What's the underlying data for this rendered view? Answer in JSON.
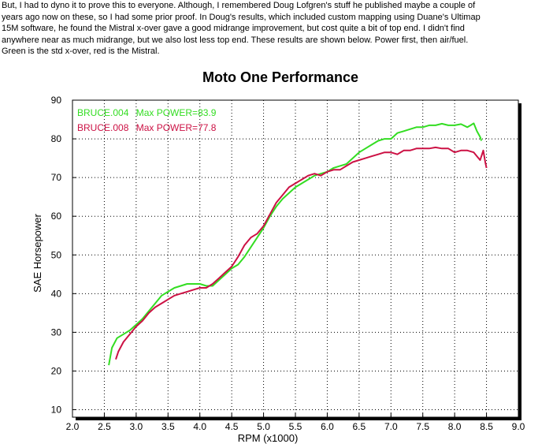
{
  "intro": {
    "lines": [
      "But, I had to dyno it to prove this to everyone. Although, I remembered Doug Lofgren's stuff he published maybe a couple of",
      "years ago now on these, so I had some prior proof. In Doug's results, which included custom mapping using Duane's Ultimap",
      "15M software, he found the Mistral x-over gave a good midrange improvement, but cost quite a bit of top end. I didn't find",
      "anywhere near as much midrange, but we also lost less top end. These results are shown below. Power first, then air/fuel.",
      "Green is the std x-over, red is the Mistral."
    ]
  },
  "colors": {
    "green": "#33dd22",
    "red": "#cc1144"
  },
  "chart_data": {
    "type": "line",
    "title": "Moto One Performance",
    "xlabel": "RPM (x1000)",
    "ylabel": "SAE Horsepower",
    "xlim": [
      2.0,
      9.0
    ],
    "ylim": [
      10,
      90
    ],
    "xticks": [
      "2.0",
      "2.5",
      "3.0",
      "3.5",
      "4.0",
      "4.5",
      "5.0",
      "5.5",
      "6.0",
      "6.5",
      "7.0",
      "7.5",
      "8.0",
      "8.5",
      "9.0"
    ],
    "yticks": [
      "10",
      "20",
      "30",
      "40",
      "50",
      "60",
      "70",
      "80",
      "90"
    ],
    "grid": true,
    "legend_position": "top-left",
    "series": [
      {
        "name": "BRUCE.004",
        "legend": "Max POWER=83.9",
        "color": "#33dd22",
        "x": [
          2.57,
          2.62,
          2.7,
          2.8,
          2.9,
          3.0,
          3.1,
          3.2,
          3.3,
          3.4,
          3.5,
          3.6,
          3.7,
          3.8,
          3.9,
          4.0,
          4.1,
          4.2,
          4.3,
          4.4,
          4.5,
          4.6,
          4.7,
          4.8,
          4.9,
          5.0,
          5.1,
          5.2,
          5.3,
          5.4,
          5.5,
          5.6,
          5.7,
          5.8,
          5.9,
          6.0,
          6.1,
          6.2,
          6.3,
          6.4,
          6.5,
          6.6,
          6.7,
          6.8,
          6.9,
          7.0,
          7.1,
          7.2,
          7.3,
          7.4,
          7.5,
          7.6,
          7.7,
          7.8,
          7.9,
          8.0,
          8.1,
          8.2,
          8.25,
          8.3,
          8.35,
          8.4,
          8.42
        ],
        "y": [
          21.5,
          26.0,
          28.5,
          29.5,
          30.5,
          32.0,
          33.5,
          35.5,
          37.5,
          39.5,
          40.5,
          41.5,
          42.0,
          42.5,
          42.5,
          42.5,
          42.0,
          42.0,
          43.5,
          45.0,
          46.5,
          47.5,
          49.5,
          52.0,
          54.5,
          57.0,
          60.0,
          62.5,
          64.5,
          66.0,
          67.5,
          68.5,
          69.5,
          70.5,
          71.0,
          71.5,
          72.5,
          73.0,
          73.5,
          75.0,
          76.5,
          77.5,
          78.5,
          79.5,
          80.0,
          80.0,
          81.5,
          82.0,
          82.5,
          83.0,
          83.0,
          83.5,
          83.5,
          83.9,
          83.5,
          83.5,
          83.8,
          83.0,
          83.5,
          84.0,
          82.0,
          80.5,
          79.5
        ]
      },
      {
        "name": "BRUCE.008",
        "legend": "Max POWER=77.8",
        "color": "#cc1144",
        "x": [
          2.68,
          2.72,
          2.8,
          2.9,
          3.0,
          3.1,
          3.2,
          3.3,
          3.4,
          3.5,
          3.6,
          3.7,
          3.8,
          3.9,
          4.0,
          4.1,
          4.2,
          4.3,
          4.4,
          4.5,
          4.6,
          4.7,
          4.8,
          4.9,
          5.0,
          5.1,
          5.2,
          5.3,
          5.4,
          5.5,
          5.6,
          5.7,
          5.8,
          5.9,
          6.0,
          6.1,
          6.2,
          6.3,
          6.4,
          6.5,
          6.6,
          6.7,
          6.8,
          6.9,
          7.0,
          7.1,
          7.2,
          7.3,
          7.4,
          7.5,
          7.6,
          7.7,
          7.8,
          7.9,
          8.0,
          8.1,
          8.2,
          8.3,
          8.35,
          8.4,
          8.45,
          8.48,
          8.5
        ],
        "y": [
          23.0,
          25.0,
          27.5,
          29.5,
          31.5,
          33.0,
          35.0,
          36.5,
          37.5,
          38.5,
          39.5,
          40.0,
          40.5,
          41.0,
          41.5,
          41.5,
          42.5,
          44.0,
          45.5,
          47.0,
          49.5,
          52.5,
          54.5,
          55.5,
          57.5,
          60.5,
          63.5,
          65.5,
          67.5,
          68.5,
          69.5,
          70.5,
          71.0,
          70.5,
          71.5,
          72.0,
          72.0,
          73.0,
          74.0,
          74.5,
          75.0,
          75.5,
          76.0,
          76.5,
          76.5,
          76.0,
          77.0,
          77.0,
          77.5,
          77.5,
          77.5,
          77.8,
          77.5,
          77.5,
          76.5,
          77.0,
          77.0,
          76.5,
          75.5,
          74.5,
          77.0,
          74.0,
          72.5
        ]
      }
    ]
  }
}
